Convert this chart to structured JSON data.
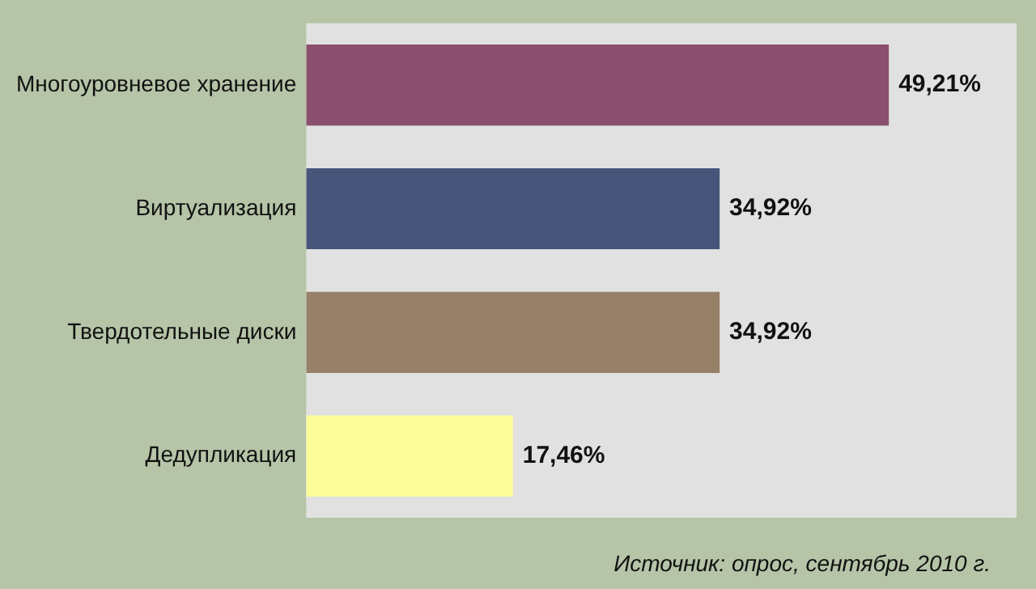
{
  "chart_data": {
    "type": "bar",
    "orientation": "horizontal",
    "categories": [
      "Многоуровневое хранение",
      "Виртуализация",
      "Твердотельные диски",
      "Дедупликация"
    ],
    "values": [
      49.21,
      34.92,
      34.92,
      17.46
    ],
    "colors": [
      "#8b4f6e",
      "#48557a",
      "#978068",
      "#fdfd9a"
    ],
    "value_labels": [
      "49,21%",
      "34,92%",
      "34,92%",
      "17,46%"
    ],
    "annotations": [
      "Источник: опрос, сентябрь 2010 г."
    ],
    "grid": false,
    "legend": false
  }
}
